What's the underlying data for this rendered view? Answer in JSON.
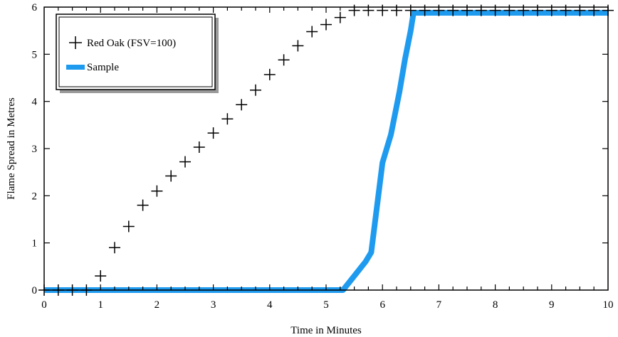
{
  "chart_data": {
    "type": "scatter",
    "title": "",
    "xlabel": "Time in Minutes",
    "ylabel": "Flame Spread in Metres",
    "xlim": [
      0,
      10
    ],
    "ylim": [
      0,
      6
    ],
    "x_ticks": [
      "0",
      "1",
      "2",
      "3",
      "4",
      "5",
      "6",
      "7",
      "8",
      "9",
      "10"
    ],
    "y_ticks": [
      "0",
      "1",
      "2",
      "3",
      "4",
      "5",
      "6"
    ],
    "grid": false,
    "legend_position": "top-left",
    "series": [
      {
        "name": "Red Oak (FSV=100)",
        "style": "plus-markers",
        "color": "#000000",
        "x": [
          0.0,
          0.25,
          0.5,
          0.75,
          1.0,
          1.25,
          1.5,
          1.75,
          2.0,
          2.25,
          2.5,
          2.75,
          3.0,
          3.25,
          3.5,
          3.75,
          4.0,
          4.25,
          4.5,
          4.75,
          5.0,
          5.25,
          5.5,
          5.75,
          6.0,
          6.25,
          6.5,
          6.75,
          7.0,
          7.25,
          7.5,
          7.75,
          8.0,
          8.25,
          8.5,
          8.75,
          9.0,
          9.25,
          9.5,
          9.75,
          10.0
        ],
        "y": [
          0.0,
          0.0,
          0.0,
          0.0,
          0.3,
          0.9,
          1.35,
          1.8,
          2.1,
          2.42,
          2.72,
          3.03,
          3.33,
          3.63,
          3.93,
          4.24,
          4.57,
          4.88,
          5.18,
          5.48,
          5.63,
          5.78,
          5.93,
          5.93,
          5.93,
          5.93,
          5.93,
          5.93,
          5.93,
          5.93,
          5.93,
          5.93,
          5.93,
          5.93,
          5.93,
          5.93,
          5.93,
          5.93,
          5.93,
          5.93,
          5.93
        ]
      },
      {
        "name": "Sample",
        "style": "thick-line",
        "color": "#1e9bef",
        "x": [
          0.0,
          5.25,
          5.3,
          5.5,
          5.7,
          5.8,
          6.0,
          6.15,
          6.3,
          6.4,
          6.5,
          6.55,
          6.6,
          10.0
        ],
        "y": [
          0.0,
          0.0,
          0.0,
          0.3,
          0.6,
          0.8,
          2.7,
          3.3,
          4.2,
          4.9,
          5.5,
          5.88,
          5.88,
          5.88
        ]
      }
    ]
  }
}
